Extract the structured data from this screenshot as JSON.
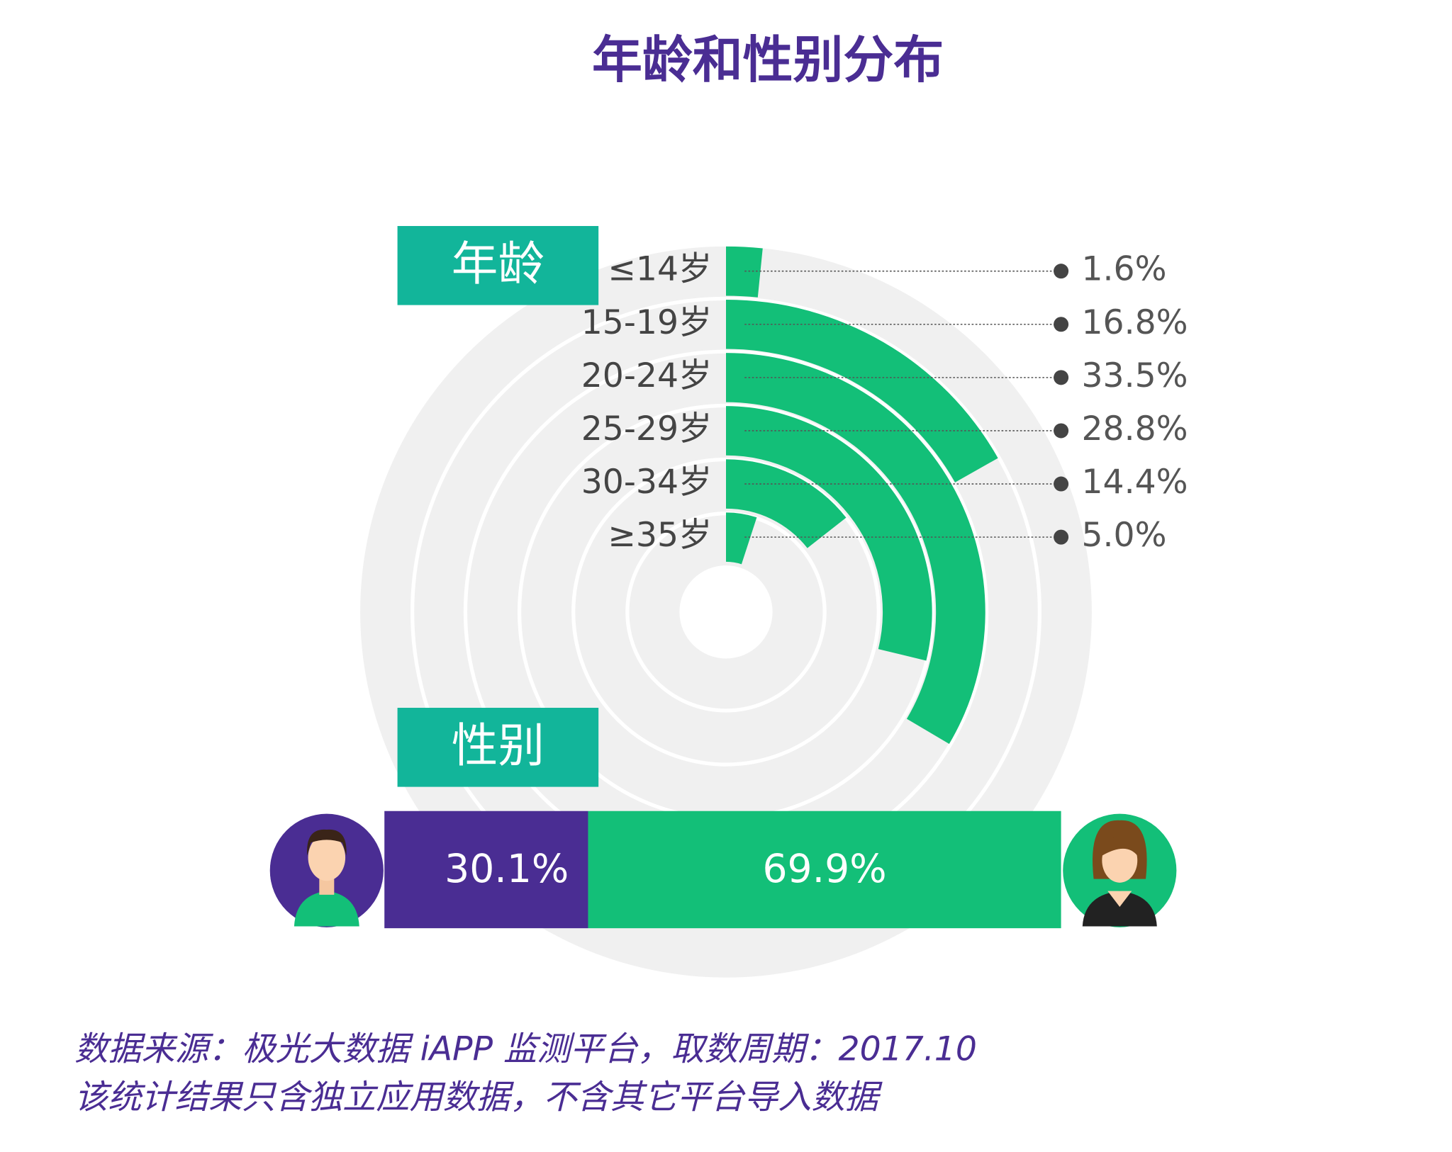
{
  "title": "年龄和性别分布",
  "chart_data": [
    {
      "type": "radial-bar",
      "label": "年龄",
      "categories": [
        "≤14岁",
        "15-19岁",
        "20-24岁",
        "25-29岁",
        "30-34岁",
        "≥35岁"
      ],
      "values": [
        1.6,
        16.8,
        33.5,
        28.8,
        14.4,
        5.0
      ],
      "value_labels": [
        "1.6%",
        "16.8%",
        "33.5%",
        "28.8%",
        "14.4%",
        "5.0%"
      ],
      "color": "#13bf78",
      "ylim": [
        0,
        100
      ]
    },
    {
      "type": "stacked-bar",
      "label": "性别",
      "series": [
        {
          "color": "#4a2d93",
          "values": [
            30.1
          ],
          "value_labels": [
            "30.1%"
          ]
        },
        {
          "color": "#13bf78",
          "values": [
            69.9
          ],
          "value_labels": [
            "69.9%"
          ]
        }
      ],
      "xlim": [
        0,
        100
      ]
    }
  ],
  "footer": [
    "数据来源：极光大数据 iAPP 监测平台，取数周期：2017.10",
    "该统计结果只含独立应用数据，不含其它平台导入数据"
  ]
}
